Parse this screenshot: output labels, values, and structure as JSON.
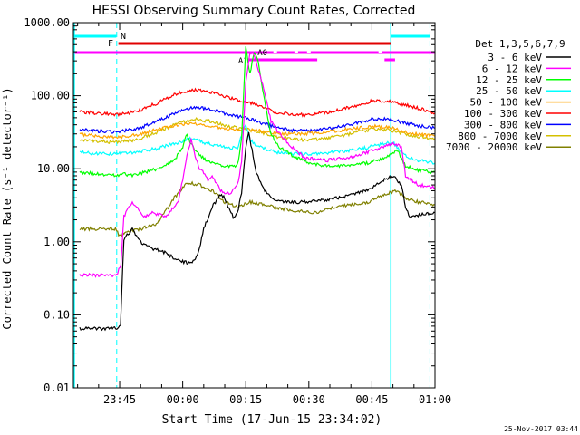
{
  "chart_data": {
    "type": "line",
    "title": "HESSI Observing Summary Count Rates, Corrected",
    "xlabel": "Start Time (17-Jun-15 23:34:02)",
    "ylabel": "Corrected Count Rate (s⁻¹ detector⁻¹)",
    "y_scale": "log",
    "ylim": [
      0.01,
      1000
    ],
    "xlim_minutes": [
      0,
      86
    ],
    "y_tick_labels": [
      "1000.00",
      "100.00",
      "10.00",
      "1.00",
      "0.10",
      "0.01"
    ],
    "x_tick_labels": [
      "23:45",
      "00:00",
      "00:15",
      "00:30",
      "00:45",
      "01:00"
    ],
    "x_ticks_minutes": [
      11,
      26,
      41,
      56,
      71,
      86
    ],
    "legend_title": "Det 1,3,5,6,7,9",
    "date_stamp": "25-Nov-2017 03:44",
    "flags": {
      "N_label": "N",
      "F_label": "F",
      "A1_label": "A1",
      "A0_label": "A0"
    },
    "series": [
      {
        "name": "3 - 6 keV",
        "color": "#000000",
        "points": [
          [
            1.5,
            0.065
          ],
          [
            10.3,
            0.065
          ],
          [
            11.2,
            0.07
          ],
          [
            12,
            1.1
          ],
          [
            14,
            1.5
          ],
          [
            16,
            1.0
          ],
          [
            17,
            0.9
          ],
          [
            19,
            0.8
          ],
          [
            21,
            0.75
          ],
          [
            23,
            0.65
          ],
          [
            25,
            0.55
          ],
          [
            27,
            0.52
          ],
          [
            29,
            0.55
          ],
          [
            30,
            0.8
          ],
          [
            31,
            1.5
          ],
          [
            33,
            3
          ],
          [
            35,
            4.5
          ],
          [
            36,
            4
          ],
          [
            37,
            2.8
          ],
          [
            38,
            2.2
          ],
          [
            39,
            2.5
          ],
          [
            40,
            4.5
          ],
          [
            41,
            20
          ],
          [
            41.7,
            30
          ],
          [
            42.5,
            18
          ],
          [
            43.5,
            9
          ],
          [
            45,
            5.5
          ],
          [
            47,
            4
          ],
          [
            49,
            3.5
          ],
          [
            53,
            3.5
          ],
          [
            58,
            3.6
          ],
          [
            63,
            4
          ],
          [
            67,
            4.5
          ],
          [
            71,
            5.5
          ],
          [
            74,
            7
          ],
          [
            76,
            8
          ],
          [
            78,
            6
          ],
          [
            79,
            3
          ],
          [
            80,
            2.2
          ],
          [
            86,
            2.5
          ]
        ]
      },
      {
        "name": "6 - 12 keV",
        "color": "#ff00ff",
        "points": [
          [
            1.5,
            0.35
          ],
          [
            10.3,
            0.35
          ],
          [
            11.3,
            0.5
          ],
          [
            12,
            2.2
          ],
          [
            14,
            3.5
          ],
          [
            15,
            3
          ],
          [
            17,
            2.2
          ],
          [
            19,
            2.5
          ],
          [
            22,
            2.2
          ],
          [
            25,
            3.5
          ],
          [
            27,
            15
          ],
          [
            28,
            25
          ],
          [
            29,
            15
          ],
          [
            30,
            10
          ],
          [
            31,
            9
          ],
          [
            32,
            7
          ],
          [
            33,
            8
          ],
          [
            35,
            5
          ],
          [
            37,
            4.5
          ],
          [
            39,
            6
          ],
          [
            40,
            12
          ],
          [
            41,
            150
          ],
          [
            42,
            400
          ],
          [
            43,
            350
          ],
          [
            44,
            220
          ],
          [
            45,
            150
          ],
          [
            46,
            80
          ],
          [
            47,
            45
          ],
          [
            49,
            30
          ],
          [
            52,
            20
          ],
          [
            55,
            14
          ],
          [
            60,
            13
          ],
          [
            65,
            14
          ],
          [
            70,
            17
          ],
          [
            74,
            20
          ],
          [
            76,
            22
          ],
          [
            78,
            20
          ],
          [
            79,
            8
          ],
          [
            82,
            6
          ],
          [
            86,
            5.5
          ]
        ]
      },
      {
        "name": "12 - 25 keV",
        "color": "#00ff00",
        "points": [
          [
            1.5,
            9
          ],
          [
            5,
            8.5
          ],
          [
            10,
            8
          ],
          [
            12,
            8.5
          ],
          [
            14,
            8
          ],
          [
            17,
            9
          ],
          [
            20,
            10
          ],
          [
            24,
            13
          ],
          [
            26,
            20
          ],
          [
            27,
            30
          ],
          [
            28,
            22
          ],
          [
            30,
            15
          ],
          [
            33,
            12
          ],
          [
            36,
            11
          ],
          [
            39,
            11
          ],
          [
            40,
            25
          ],
          [
            41,
            500
          ],
          [
            41.5,
            300
          ],
          [
            42,
            200
          ],
          [
            43,
            400
          ],
          [
            44,
            300
          ],
          [
            45,
            120
          ],
          [
            46,
            60
          ],
          [
            47,
            30
          ],
          [
            49,
            20
          ],
          [
            52,
            15
          ],
          [
            56,
            12
          ],
          [
            60,
            11
          ],
          [
            65,
            11
          ],
          [
            70,
            12
          ],
          [
            74,
            14
          ],
          [
            77,
            18
          ],
          [
            79,
            11
          ],
          [
            82,
            9.5
          ],
          [
            86,
            9
          ]
        ]
      },
      {
        "name": "25 - 50 keV",
        "color": "#00ffff",
        "points": [
          [
            1.5,
            17
          ],
          [
            5,
            16
          ],
          [
            10,
            16
          ],
          [
            15,
            17
          ],
          [
            20,
            19
          ],
          [
            24,
            22
          ],
          [
            28,
            26
          ],
          [
            32,
            22
          ],
          [
            36,
            20
          ],
          [
            39,
            19
          ],
          [
            40,
            30
          ],
          [
            41,
            40
          ],
          [
            42,
            25
          ],
          [
            44,
            20
          ],
          [
            48,
            17
          ],
          [
            52,
            16
          ],
          [
            57,
            16
          ],
          [
            62,
            17
          ],
          [
            67,
            18
          ],
          [
            72,
            21
          ],
          [
            76,
            23
          ],
          [
            79,
            15
          ],
          [
            82,
            13
          ],
          [
            86,
            12
          ]
        ]
      },
      {
        "name": "50 - 100 keV",
        "color": "#ffa500",
        "points": [
          [
            1.5,
            30
          ],
          [
            5,
            28
          ],
          [
            10,
            27
          ],
          [
            15,
            29
          ],
          [
            20,
            35
          ],
          [
            25,
            40
          ],
          [
            29,
            42
          ],
          [
            33,
            38
          ],
          [
            38,
            35
          ],
          [
            42,
            34
          ],
          [
            46,
            32
          ],
          [
            50,
            30
          ],
          [
            55,
            30
          ],
          [
            60,
            32
          ],
          [
            66,
            35
          ],
          [
            71,
            38
          ],
          [
            75,
            37
          ],
          [
            79,
            32
          ],
          [
            83,
            29
          ],
          [
            86,
            28
          ]
        ]
      },
      {
        "name": "100 - 300 keV",
        "color": "#ff0000",
        "points": [
          [
            1.5,
            60
          ],
          [
            5,
            58
          ],
          [
            10,
            55
          ],
          [
            15,
            60
          ],
          [
            20,
            80
          ],
          [
            25,
            110
          ],
          [
            29,
            120
          ],
          [
            33,
            110
          ],
          [
            37,
            95
          ],
          [
            40,
            85
          ],
          [
            44,
            75
          ],
          [
            48,
            60
          ],
          [
            52,
            55
          ],
          [
            56,
            55
          ],
          [
            61,
            60
          ],
          [
            66,
            70
          ],
          [
            71,
            85
          ],
          [
            75,
            85
          ],
          [
            79,
            75
          ],
          [
            83,
            65
          ],
          [
            86,
            58
          ]
        ]
      },
      {
        "name": "300 - 800 keV",
        "color": "#0000ff",
        "points": [
          [
            1.5,
            35
          ],
          [
            5,
            33
          ],
          [
            10,
            32
          ],
          [
            15,
            35
          ],
          [
            20,
            45
          ],
          [
            25,
            60
          ],
          [
            29,
            70
          ],
          [
            33,
            65
          ],
          [
            37,
            55
          ],
          [
            41,
            50
          ],
          [
            45,
            42
          ],
          [
            49,
            36
          ],
          [
            53,
            33
          ],
          [
            57,
            33
          ],
          [
            62,
            36
          ],
          [
            67,
            42
          ],
          [
            71,
            48
          ],
          [
            75,
            48
          ],
          [
            79,
            42
          ],
          [
            83,
            38
          ],
          [
            86,
            36
          ]
        ]
      },
      {
        "name": "800 - 7000 keV",
        "color": "#d4c000",
        "points": [
          [
            1.5,
            25
          ],
          [
            5,
            24
          ],
          [
            10,
            23
          ],
          [
            15,
            25
          ],
          [
            20,
            32
          ],
          [
            25,
            42
          ],
          [
            29,
            48
          ],
          [
            33,
            44
          ],
          [
            37,
            38
          ],
          [
            41,
            35
          ],
          [
            45,
            31
          ],
          [
            49,
            27
          ],
          [
            53,
            25
          ],
          [
            57,
            25
          ],
          [
            62,
            27
          ],
          [
            67,
            31
          ],
          [
            71,
            35
          ],
          [
            75,
            34
          ],
          [
            79,
            30
          ],
          [
            83,
            27
          ],
          [
            86,
            26
          ]
        ]
      },
      {
        "name": "7000 - 20000 keV",
        "color": "#808000",
        "points": [
          [
            1.5,
            1.5
          ],
          [
            10,
            1.5
          ],
          [
            11,
            1.2
          ],
          [
            12,
            1.3
          ],
          [
            16,
            1.5
          ],
          [
            20,
            1.8
          ],
          [
            24,
            4
          ],
          [
            27,
            6.5
          ],
          [
            30,
            6
          ],
          [
            33,
            5
          ],
          [
            36,
            3.5
          ],
          [
            39,
            3
          ],
          [
            42,
            3.5
          ],
          [
            46,
            3.2
          ],
          [
            50,
            2.8
          ],
          [
            54,
            2.6
          ],
          [
            58,
            2.5
          ],
          [
            62,
            3
          ],
          [
            66,
            3.2
          ],
          [
            70,
            3.5
          ],
          [
            74,
            4.5
          ],
          [
            77,
            5
          ],
          [
            79,
            4
          ],
          [
            82,
            3.5
          ],
          [
            86,
            3.2
          ]
        ]
      }
    ]
  }
}
